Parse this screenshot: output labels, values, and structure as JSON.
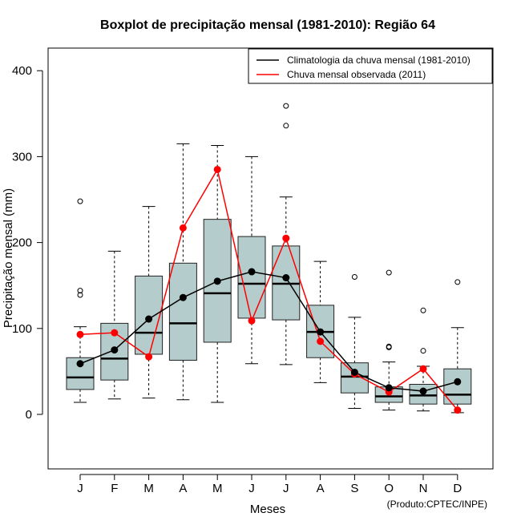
{
  "chart_data": {
    "type": "boxplot",
    "title": "Boxplot de precipitação mensal (1981-2010): Região 64",
    "xlabel": "Meses",
    "ylabel": "Precipitação mensal (mm)",
    "ylim": [
      -65,
      425
    ],
    "yticks": [
      0,
      100,
      200,
      300,
      400
    ],
    "categories": [
      "J",
      "F",
      "M",
      "A",
      "M",
      "J",
      "J",
      "A",
      "S",
      "O",
      "N",
      "D"
    ],
    "boxes": [
      {
        "min": 14,
        "q1": 29,
        "median": 43,
        "q3": 66,
        "max": 102,
        "outliers": [
          139,
          144,
          248
        ]
      },
      {
        "min": 18,
        "q1": 40,
        "median": 65,
        "q3": 106,
        "max": 190,
        "outliers": []
      },
      {
        "min": 19,
        "q1": 70,
        "median": 95,
        "q3": 161,
        "max": 242,
        "outliers": []
      },
      {
        "min": 17,
        "q1": 63,
        "median": 106,
        "q3": 176,
        "max": 315,
        "outliers": []
      },
      {
        "min": 14,
        "q1": 84,
        "median": 141,
        "q3": 227,
        "max": 313,
        "outliers": []
      },
      {
        "min": 59,
        "q1": 112,
        "median": 152,
        "q3": 207,
        "max": 300,
        "outliers": []
      },
      {
        "min": 58,
        "q1": 110,
        "median": 152,
        "q3": 196,
        "max": 253,
        "outliers": [
          336,
          359
        ]
      },
      {
        "min": 37,
        "q1": 66,
        "median": 96,
        "q3": 127,
        "max": 178,
        "outliers": []
      },
      {
        "min": 7,
        "q1": 25,
        "median": 44,
        "q3": 60,
        "max": 113,
        "outliers": [
          160
        ]
      },
      {
        "min": 5,
        "q1": 14,
        "median": 21,
        "q3": 32,
        "max": 61,
        "outliers": [
          78,
          79,
          165
        ]
      },
      {
        "min": 4,
        "q1": 12,
        "median": 22,
        "q3": 35,
        "max": 56,
        "outliers": [
          74,
          121
        ]
      },
      {
        "min": 2,
        "q1": 12,
        "median": 23,
        "q3": 53,
        "max": 101,
        "outliers": [
          154
        ]
      }
    ],
    "series": [
      {
        "name": "Climatologia da chuva mensal (1981-2010)",
        "color": "#000000",
        "values": [
          59,
          75,
          111,
          136,
          155,
          166,
          159,
          96,
          49,
          31,
          27,
          38
        ]
      },
      {
        "name": "Chuva mensal observada (2011)",
        "color": "#ff0000",
        "values": [
          93,
          95,
          67,
          217,
          285,
          109,
          205,
          85,
          47,
          26,
          53,
          5
        ]
      }
    ],
    "legend_position": "top-right",
    "box_fill": "#b5cccc",
    "footnote": "(Produto:CPTEC/INPE)"
  }
}
